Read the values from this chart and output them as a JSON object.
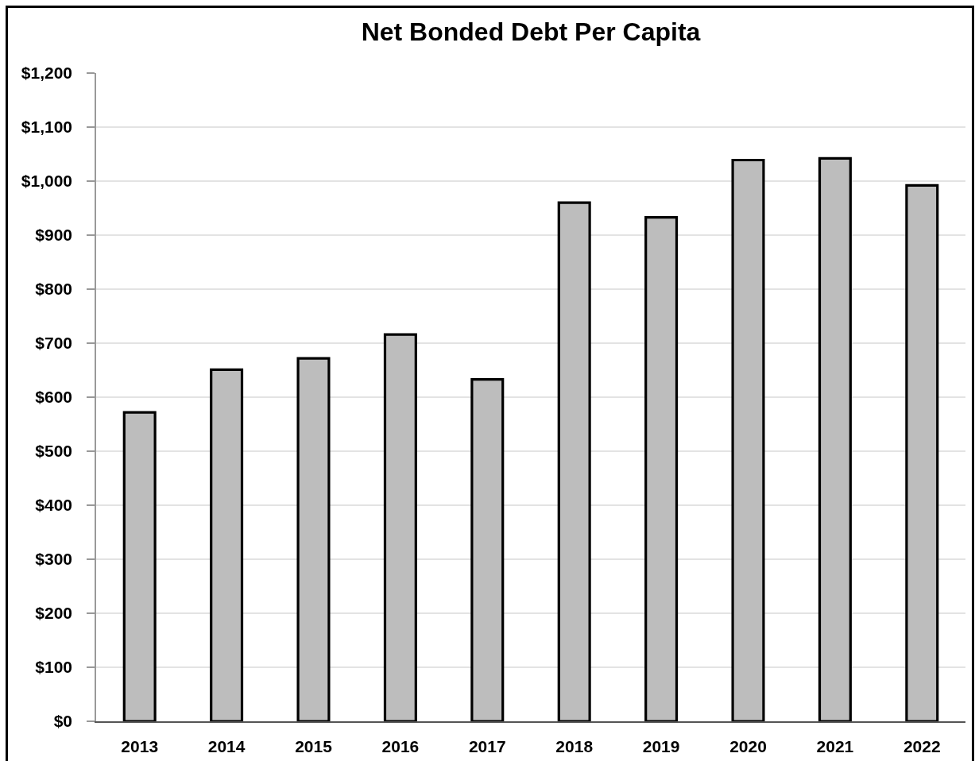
{
  "chart_data": {
    "type": "bar",
    "title": "Net Bonded Debt Per Capita",
    "categories": [
      "2013",
      "2014",
      "2015",
      "2016",
      "2017",
      "2018",
      "2019",
      "2020",
      "2021",
      "2022"
    ],
    "values": [
      572,
      651,
      672,
      716,
      633,
      960,
      933,
      1039,
      1042,
      992
    ],
    "color": "#bdbdbd",
    "ylim": [
      0,
      1200
    ],
    "yticks": [
      {
        "value": 0,
        "label": "$0"
      },
      {
        "value": 100,
        "label": "$100"
      },
      {
        "value": 200,
        "label": "$200"
      },
      {
        "value": 300,
        "label": "$300"
      },
      {
        "value": 400,
        "label": "$400"
      },
      {
        "value": 500,
        "label": "$500"
      },
      {
        "value": 600,
        "label": "$600"
      },
      {
        "value": 700,
        "label": "$700"
      },
      {
        "value": 800,
        "label": "$800"
      },
      {
        "value": 900,
        "label": "$900"
      },
      {
        "value": 1000,
        "label": "$1,000"
      },
      {
        "value": 1100,
        "label": "$1,100"
      },
      {
        "value": 1200,
        "label": "$1,200"
      }
    ],
    "grid": "y"
  }
}
